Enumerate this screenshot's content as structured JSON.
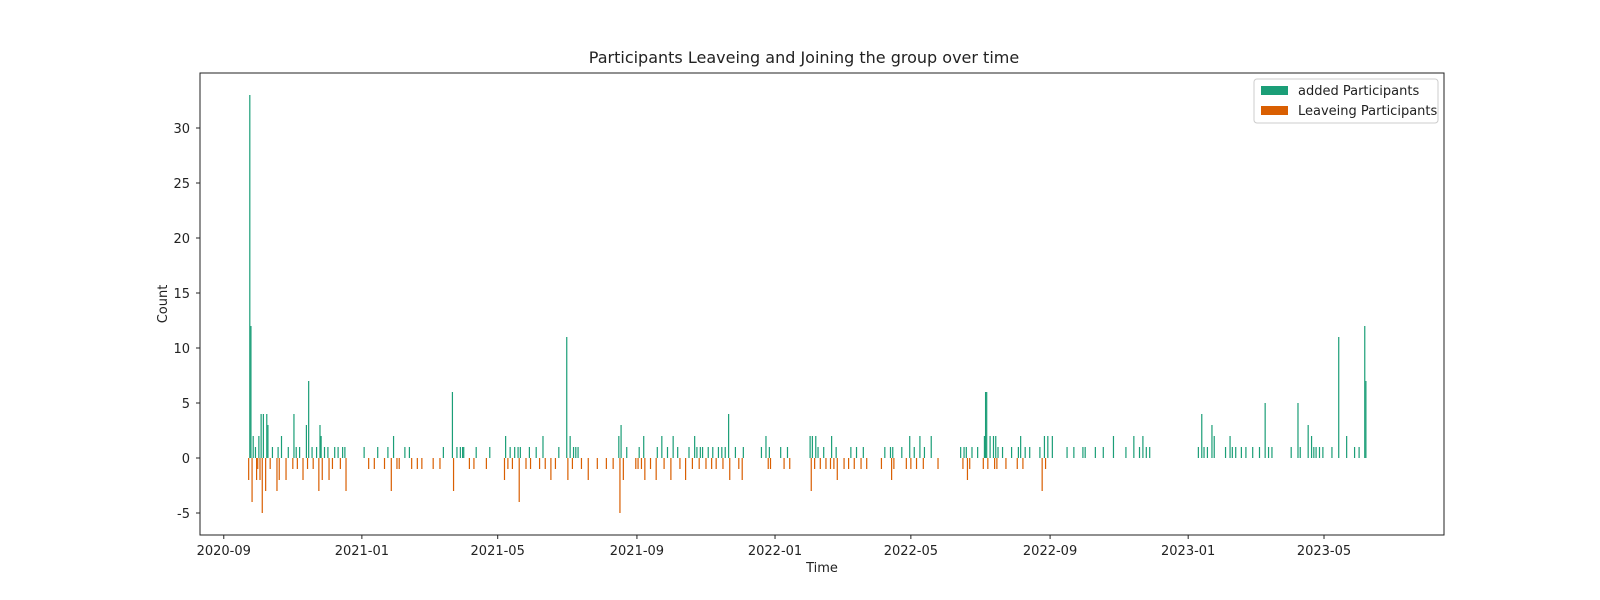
{
  "chart_data": {
    "type": "bar",
    "title": "Participants Leaveing and Joining the group over time",
    "xlabel": "Time",
    "ylabel": "Count",
    "xlim": [
      "2020-08-11",
      "2023-08-15"
    ],
    "ylim": [
      -7,
      35
    ],
    "grid": false,
    "legend_position": "top-right",
    "x_ticks": [
      "2020-09",
      "2021-01",
      "2021-05",
      "2021-09",
      "2022-01",
      "2022-05",
      "2022-09",
      "2023-01",
      "2023-05"
    ],
    "y_ticks": [
      -5,
      0,
      5,
      10,
      15,
      20,
      25,
      30
    ],
    "series": [
      {
        "name": "added Participants",
        "color": "#1b9e77",
        "points": [
          [
            "2020-09-24",
            33
          ],
          [
            "2020-09-25",
            12
          ],
          [
            "2020-09-27",
            2
          ],
          [
            "2020-09-29",
            1
          ],
          [
            "2020-10-02",
            2
          ],
          [
            "2020-10-04",
            4
          ],
          [
            "2020-10-06",
            4
          ],
          [
            "2020-10-09",
            4
          ],
          [
            "2020-10-10",
            3
          ],
          [
            "2020-10-14",
            1
          ],
          [
            "2020-10-19",
            1
          ],
          [
            "2020-10-22",
            2
          ],
          [
            "2020-10-28",
            1
          ],
          [
            "2020-11-02",
            4
          ],
          [
            "2020-11-04",
            1
          ],
          [
            "2020-11-07",
            1
          ],
          [
            "2020-11-13",
            3
          ],
          [
            "2020-11-15",
            7
          ],
          [
            "2020-11-18",
            1
          ],
          [
            "2020-11-22",
            1
          ],
          [
            "2020-11-25",
            3
          ],
          [
            "2020-11-26",
            2
          ],
          [
            "2020-11-29",
            1
          ],
          [
            "2020-12-02",
            1
          ],
          [
            "2020-12-08",
            1
          ],
          [
            "2020-12-11",
            1
          ],
          [
            "2020-12-15",
            1
          ],
          [
            "2020-12-17",
            1
          ],
          [
            "2021-01-03",
            1
          ],
          [
            "2021-01-15",
            1
          ],
          [
            "2021-01-24",
            1
          ],
          [
            "2021-01-29",
            2
          ],
          [
            "2021-02-08",
            1
          ],
          [
            "2021-02-12",
            1
          ],
          [
            "2021-03-14",
            1
          ],
          [
            "2021-03-22",
            6
          ],
          [
            "2021-03-26",
            1
          ],
          [
            "2021-03-29",
            1
          ],
          [
            "2021-03-31",
            1
          ],
          [
            "2021-04-01",
            1
          ],
          [
            "2021-04-12",
            1
          ],
          [
            "2021-04-24",
            1
          ],
          [
            "2021-05-08",
            2
          ],
          [
            "2021-05-12",
            1
          ],
          [
            "2021-05-16",
            1
          ],
          [
            "2021-05-19",
            1
          ],
          [
            "2021-05-21",
            1
          ],
          [
            "2021-05-29",
            1
          ],
          [
            "2021-06-04",
            1
          ],
          [
            "2021-06-10",
            2
          ],
          [
            "2021-06-24",
            1
          ],
          [
            "2021-07-01",
            11
          ],
          [
            "2021-07-04",
            2
          ],
          [
            "2021-07-07",
            1
          ],
          [
            "2021-07-09",
            1
          ],
          [
            "2021-07-11",
            1
          ],
          [
            "2021-08-16",
            2
          ],
          [
            "2021-08-18",
            3
          ],
          [
            "2021-08-23",
            1
          ],
          [
            "2021-09-03",
            1
          ],
          [
            "2021-09-07",
            2
          ],
          [
            "2021-09-19",
            1
          ],
          [
            "2021-09-23",
            2
          ],
          [
            "2021-09-28",
            1
          ],
          [
            "2021-10-03",
            2
          ],
          [
            "2021-10-07",
            1
          ],
          [
            "2021-10-17",
            1
          ],
          [
            "2021-10-22",
            2
          ],
          [
            "2021-10-24",
            1
          ],
          [
            "2021-10-27",
            1
          ],
          [
            "2021-10-29",
            1
          ],
          [
            "2021-11-03",
            1
          ],
          [
            "2021-11-07",
            1
          ],
          [
            "2021-11-12",
            1
          ],
          [
            "2021-11-15",
            1
          ],
          [
            "2021-11-18",
            1
          ],
          [
            "2021-11-21",
            4
          ],
          [
            "2021-11-27",
            1
          ],
          [
            "2021-12-04",
            1
          ],
          [
            "2021-12-20",
            1
          ],
          [
            "2021-12-24",
            2
          ],
          [
            "2021-12-27",
            1
          ],
          [
            "2022-01-06",
            1
          ],
          [
            "2022-01-12",
            1
          ],
          [
            "2022-02-01",
            2
          ],
          [
            "2022-02-03",
            2
          ],
          [
            "2022-02-06",
            2
          ],
          [
            "2022-02-08",
            1
          ],
          [
            "2022-02-13",
            1
          ],
          [
            "2022-02-20",
            2
          ],
          [
            "2022-02-24",
            1
          ],
          [
            "2022-03-09",
            1
          ],
          [
            "2022-03-14",
            1
          ],
          [
            "2022-03-20",
            1
          ],
          [
            "2022-04-08",
            1
          ],
          [
            "2022-04-13",
            1
          ],
          [
            "2022-04-15",
            1
          ],
          [
            "2022-04-23",
            1
          ],
          [
            "2022-04-30",
            2
          ],
          [
            "2022-05-04",
            1
          ],
          [
            "2022-05-09",
            2
          ],
          [
            "2022-05-13",
            1
          ],
          [
            "2022-05-19",
            2
          ],
          [
            "2022-06-14",
            1
          ],
          [
            "2022-06-17",
            1
          ],
          [
            "2022-06-19",
            1
          ],
          [
            "2022-06-24",
            1
          ],
          [
            "2022-06-29",
            1
          ],
          [
            "2022-07-05",
            2
          ],
          [
            "2022-07-06",
            6
          ],
          [
            "2022-07-07",
            6
          ],
          [
            "2022-07-10",
            2
          ],
          [
            "2022-07-13",
            2
          ],
          [
            "2022-07-15",
            2
          ],
          [
            "2022-07-17",
            1
          ],
          [
            "2022-07-21",
            1
          ],
          [
            "2022-07-29",
            1
          ],
          [
            "2022-08-04",
            1
          ],
          [
            "2022-08-06",
            2
          ],
          [
            "2022-08-10",
            1
          ],
          [
            "2022-08-14",
            1
          ],
          [
            "2022-08-23",
            1
          ],
          [
            "2022-08-27",
            2
          ],
          [
            "2022-08-30",
            2
          ],
          [
            "2022-09-03",
            2
          ],
          [
            "2022-09-16",
            1
          ],
          [
            "2022-09-22",
            1
          ],
          [
            "2022-09-30",
            1
          ],
          [
            "2022-10-02",
            1
          ],
          [
            "2022-10-11",
            1
          ],
          [
            "2022-10-18",
            1
          ],
          [
            "2022-10-27",
            2
          ],
          [
            "2022-11-07",
            1
          ],
          [
            "2022-11-14",
            2
          ],
          [
            "2022-11-19",
            1
          ],
          [
            "2022-11-22",
            2
          ],
          [
            "2022-11-25",
            1
          ],
          [
            "2022-11-28",
            1
          ],
          [
            "2023-01-10",
            1
          ],
          [
            "2023-01-13",
            4
          ],
          [
            "2023-01-15",
            1
          ],
          [
            "2023-01-18",
            1
          ],
          [
            "2023-01-22",
            3
          ],
          [
            "2023-01-24",
            2
          ],
          [
            "2023-02-03",
            1
          ],
          [
            "2023-02-07",
            2
          ],
          [
            "2023-02-09",
            1
          ],
          [
            "2023-02-12",
            1
          ],
          [
            "2023-02-17",
            1
          ],
          [
            "2023-02-21",
            1
          ],
          [
            "2023-02-27",
            1
          ],
          [
            "2023-03-05",
            1
          ],
          [
            "2023-03-10",
            5
          ],
          [
            "2023-03-13",
            1
          ],
          [
            "2023-03-16",
            1
          ],
          [
            "2023-04-02",
            1
          ],
          [
            "2023-04-08",
            5
          ],
          [
            "2023-04-10",
            1
          ],
          [
            "2023-04-17",
            3
          ],
          [
            "2023-04-20",
            2
          ],
          [
            "2023-04-22",
            1
          ],
          [
            "2023-04-24",
            1
          ],
          [
            "2023-04-27",
            1
          ],
          [
            "2023-04-30",
            1
          ],
          [
            "2023-05-08",
            1
          ],
          [
            "2023-05-14",
            11
          ],
          [
            "2023-05-21",
            2
          ],
          [
            "2023-05-28",
            1
          ],
          [
            "2023-06-01",
            1
          ],
          [
            "2023-06-06",
            12
          ],
          [
            "2023-06-07",
            7
          ]
        ]
      },
      {
        "name": "Leaveing Participants",
        "color": "#d95f02",
        "points": [
          [
            "2020-09-23",
            -2
          ],
          [
            "2020-09-26",
            -4
          ],
          [
            "2020-09-30",
            -2
          ],
          [
            "2020-10-01",
            -1
          ],
          [
            "2020-10-03",
            -2
          ],
          [
            "2020-10-05",
            -5
          ],
          [
            "2020-10-08",
            -3
          ],
          [
            "2020-10-12",
            -1
          ],
          [
            "2020-10-18",
            -3
          ],
          [
            "2020-10-20",
            -2
          ],
          [
            "2020-10-26",
            -2
          ],
          [
            "2020-11-01",
            -1
          ],
          [
            "2020-11-05",
            -1
          ],
          [
            "2020-11-10",
            -2
          ],
          [
            "2020-11-14",
            -1
          ],
          [
            "2020-11-19",
            -1
          ],
          [
            "2020-11-24",
            -3
          ],
          [
            "2020-11-27",
            -2
          ],
          [
            "2020-12-03",
            -2
          ],
          [
            "2020-12-06",
            -1
          ],
          [
            "2020-12-13",
            -1
          ],
          [
            "2020-12-18",
            -3
          ],
          [
            "2021-01-07",
            -1
          ],
          [
            "2021-01-12",
            -1
          ],
          [
            "2021-01-21",
            -1
          ],
          [
            "2021-01-27",
            -3
          ],
          [
            "2021-02-01",
            -1
          ],
          [
            "2021-02-03",
            -1
          ],
          [
            "2021-02-14",
            -1
          ],
          [
            "2021-02-19",
            -1
          ],
          [
            "2021-02-23",
            -1
          ],
          [
            "2021-03-05",
            -1
          ],
          [
            "2021-03-11",
            -1
          ],
          [
            "2021-03-23",
            -3
          ],
          [
            "2021-04-06",
            -1
          ],
          [
            "2021-04-10",
            -1
          ],
          [
            "2021-04-21",
            -1
          ],
          [
            "2021-05-07",
            -2
          ],
          [
            "2021-05-10",
            -1
          ],
          [
            "2021-05-14",
            -1
          ],
          [
            "2021-05-20",
            -4
          ],
          [
            "2021-05-26",
            -1
          ],
          [
            "2021-05-30",
            -1
          ],
          [
            "2021-06-07",
            -1
          ],
          [
            "2021-06-12",
            -1
          ],
          [
            "2021-06-17",
            -2
          ],
          [
            "2021-06-21",
            -1
          ],
          [
            "2021-07-02",
            -2
          ],
          [
            "2021-07-06",
            -1
          ],
          [
            "2021-07-14",
            -1
          ],
          [
            "2021-07-20",
            -2
          ],
          [
            "2021-07-28",
            -1
          ],
          [
            "2021-08-05",
            -1
          ],
          [
            "2021-08-11",
            -1
          ],
          [
            "2021-08-17",
            -5
          ],
          [
            "2021-08-20",
            -2
          ],
          [
            "2021-08-31",
            -1
          ],
          [
            "2021-09-02",
            -1
          ],
          [
            "2021-09-05",
            -1
          ],
          [
            "2021-09-08",
            -2
          ],
          [
            "2021-09-13",
            -1
          ],
          [
            "2021-09-18",
            -2
          ],
          [
            "2021-09-25",
            -1
          ],
          [
            "2021-10-01",
            -2
          ],
          [
            "2021-10-09",
            -1
          ],
          [
            "2021-10-14",
            -2
          ],
          [
            "2021-10-20",
            -1
          ],
          [
            "2021-10-26",
            -1
          ],
          [
            "2021-11-01",
            -1
          ],
          [
            "2021-11-06",
            -1
          ],
          [
            "2021-11-10",
            -1
          ],
          [
            "2021-11-16",
            -1
          ],
          [
            "2021-11-22",
            -2
          ],
          [
            "2021-11-30",
            -1
          ],
          [
            "2021-12-03",
            -2
          ],
          [
            "2021-12-26",
            -1
          ],
          [
            "2021-12-28",
            -1
          ],
          [
            "2022-01-09",
            -1
          ],
          [
            "2022-01-14",
            -1
          ],
          [
            "2022-02-02",
            -3
          ],
          [
            "2022-02-05",
            -1
          ],
          [
            "2022-02-10",
            -1
          ],
          [
            "2022-02-15",
            -1
          ],
          [
            "2022-02-19",
            -1
          ],
          [
            "2022-02-22",
            -1
          ],
          [
            "2022-02-25",
            -2
          ],
          [
            "2022-03-03",
            -1
          ],
          [
            "2022-03-07",
            -1
          ],
          [
            "2022-03-12",
            -1
          ],
          [
            "2022-03-18",
            -1
          ],
          [
            "2022-03-23",
            -1
          ],
          [
            "2022-04-05",
            -1
          ],
          [
            "2022-04-14",
            -2
          ],
          [
            "2022-04-16",
            -1
          ],
          [
            "2022-04-27",
            -1
          ],
          [
            "2022-05-01",
            -1
          ],
          [
            "2022-05-06",
            -1
          ],
          [
            "2022-05-12",
            -1
          ],
          [
            "2022-05-25",
            -1
          ],
          [
            "2022-06-16",
            -1
          ],
          [
            "2022-06-20",
            -2
          ],
          [
            "2022-06-22",
            -1
          ],
          [
            "2022-07-04",
            -1
          ],
          [
            "2022-07-08",
            -1
          ],
          [
            "2022-07-14",
            -1
          ],
          [
            "2022-07-16",
            -1
          ],
          [
            "2022-07-24",
            -1
          ],
          [
            "2022-08-03",
            -1
          ],
          [
            "2022-08-08",
            -1
          ],
          [
            "2022-08-25",
            -3
          ],
          [
            "2022-08-28",
            -1
          ]
        ]
      }
    ]
  }
}
